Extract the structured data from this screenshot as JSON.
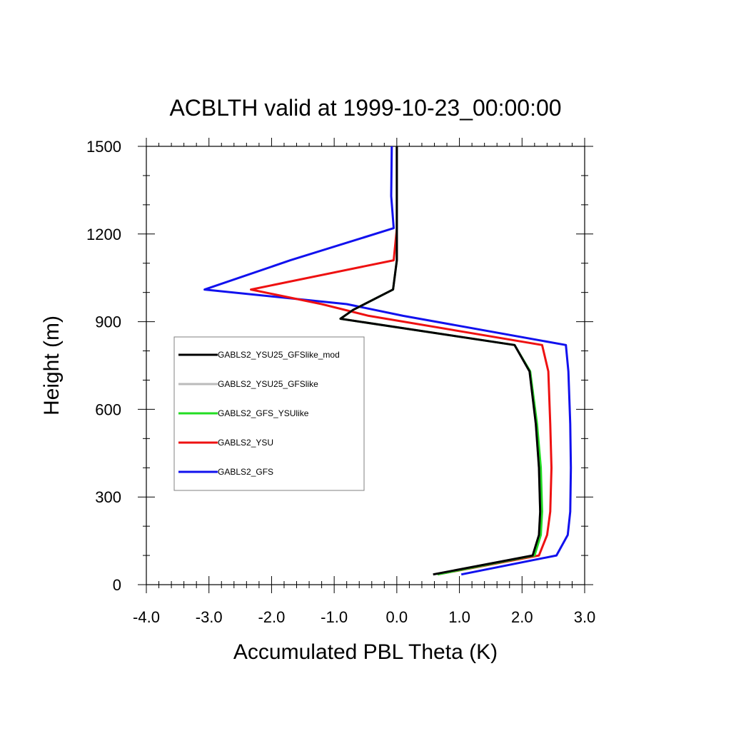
{
  "chart_data": {
    "type": "line",
    "title": "ACBLTH valid at 1999-10-23_00:00:00",
    "xlabel": "Accumulated PBL Theta (K)",
    "ylabel": "Height (m)",
    "xlim": [
      -4.0,
      3.0
    ],
    "ylim": [
      0,
      1500
    ],
    "x_ticks": [
      -4.0,
      -3.0,
      -2.0,
      -1.0,
      0.0,
      1.0,
      2.0,
      3.0
    ],
    "x_tick_labels": [
      "-4.0",
      "-3.0",
      "-2.0",
      "-1.0",
      "0.0",
      "1.0",
      "2.0",
      "3.0"
    ],
    "y_ticks": [
      0,
      300,
      600,
      900,
      1200,
      1500
    ],
    "y_tick_labels": [
      "0",
      "300",
      "600",
      "900",
      "1200",
      "1500"
    ],
    "grid": false,
    "legend_position": "left",
    "series": [
      {
        "name": "GABLS2_YSU25_GFSlike_mod",
        "color": "#000000",
        "points": [
          [
            0.58,
            35
          ],
          [
            2.17,
            100
          ],
          [
            2.27,
            170
          ],
          [
            2.29,
            250
          ],
          [
            2.27,
            400
          ],
          [
            2.22,
            550
          ],
          [
            2.12,
            730
          ],
          [
            1.88,
            820
          ],
          [
            -0.9,
            910
          ],
          [
            -0.7,
            940
          ],
          [
            -0.06,
            1010
          ],
          [
            0.0,
            1110
          ],
          [
            0.0,
            1220
          ],
          [
            0.0,
            1500
          ]
        ]
      },
      {
        "name": "GABLS2_YSU25_GFSlike",
        "color": "#bbbbbb",
        "points": [
          [
            0.58,
            35
          ],
          [
            2.17,
            100
          ],
          [
            2.27,
            170
          ],
          [
            2.29,
            250
          ],
          [
            2.27,
            400
          ],
          [
            2.22,
            550
          ],
          [
            2.12,
            730
          ],
          [
            1.88,
            820
          ],
          [
            -0.9,
            910
          ],
          [
            -0.7,
            940
          ],
          [
            -0.06,
            1010
          ],
          [
            0.0,
            1110
          ],
          [
            0.0,
            1220
          ],
          [
            0.0,
            1500
          ]
        ]
      },
      {
        "name": "GABLS2_GFS_YSUlike",
        "color": "#22dd22",
        "points": [
          [
            0.65,
            35
          ],
          [
            2.2,
            100
          ],
          [
            2.3,
            170
          ],
          [
            2.32,
            250
          ],
          [
            2.3,
            400
          ],
          [
            2.24,
            550
          ],
          [
            2.13,
            730
          ],
          [
            1.88,
            820
          ],
          [
            -0.9,
            910
          ],
          [
            -0.7,
            940
          ],
          [
            -0.06,
            1010
          ],
          [
            0.0,
            1110
          ],
          [
            0.0,
            1220
          ],
          [
            0.0,
            1500
          ]
        ]
      },
      {
        "name": "GABLS2_YSU",
        "color": "#ee1111",
        "points": [
          [
            0.65,
            35
          ],
          [
            2.27,
            100
          ],
          [
            2.4,
            170
          ],
          [
            2.45,
            250
          ],
          [
            2.47,
            400
          ],
          [
            2.45,
            550
          ],
          [
            2.42,
            730
          ],
          [
            2.32,
            820
          ],
          [
            -0.45,
            920
          ],
          [
            -1.2,
            960
          ],
          [
            -2.33,
            1010
          ],
          [
            -0.05,
            1110
          ],
          [
            0.0,
            1220
          ],
          [
            0.0,
            1500
          ]
        ]
      },
      {
        "name": "GABLS2_GFS",
        "color": "#1111ee",
        "points": [
          [
            1.03,
            35
          ],
          [
            2.55,
            100
          ],
          [
            2.73,
            170
          ],
          [
            2.77,
            250
          ],
          [
            2.78,
            400
          ],
          [
            2.77,
            550
          ],
          [
            2.74,
            730
          ],
          [
            2.7,
            820
          ],
          [
            0.1,
            920
          ],
          [
            -0.8,
            960
          ],
          [
            -3.07,
            1010
          ],
          [
            -1.7,
            1110
          ],
          [
            -0.05,
            1220
          ],
          [
            -0.09,
            1330
          ],
          [
            -0.08,
            1500
          ]
        ]
      }
    ]
  }
}
